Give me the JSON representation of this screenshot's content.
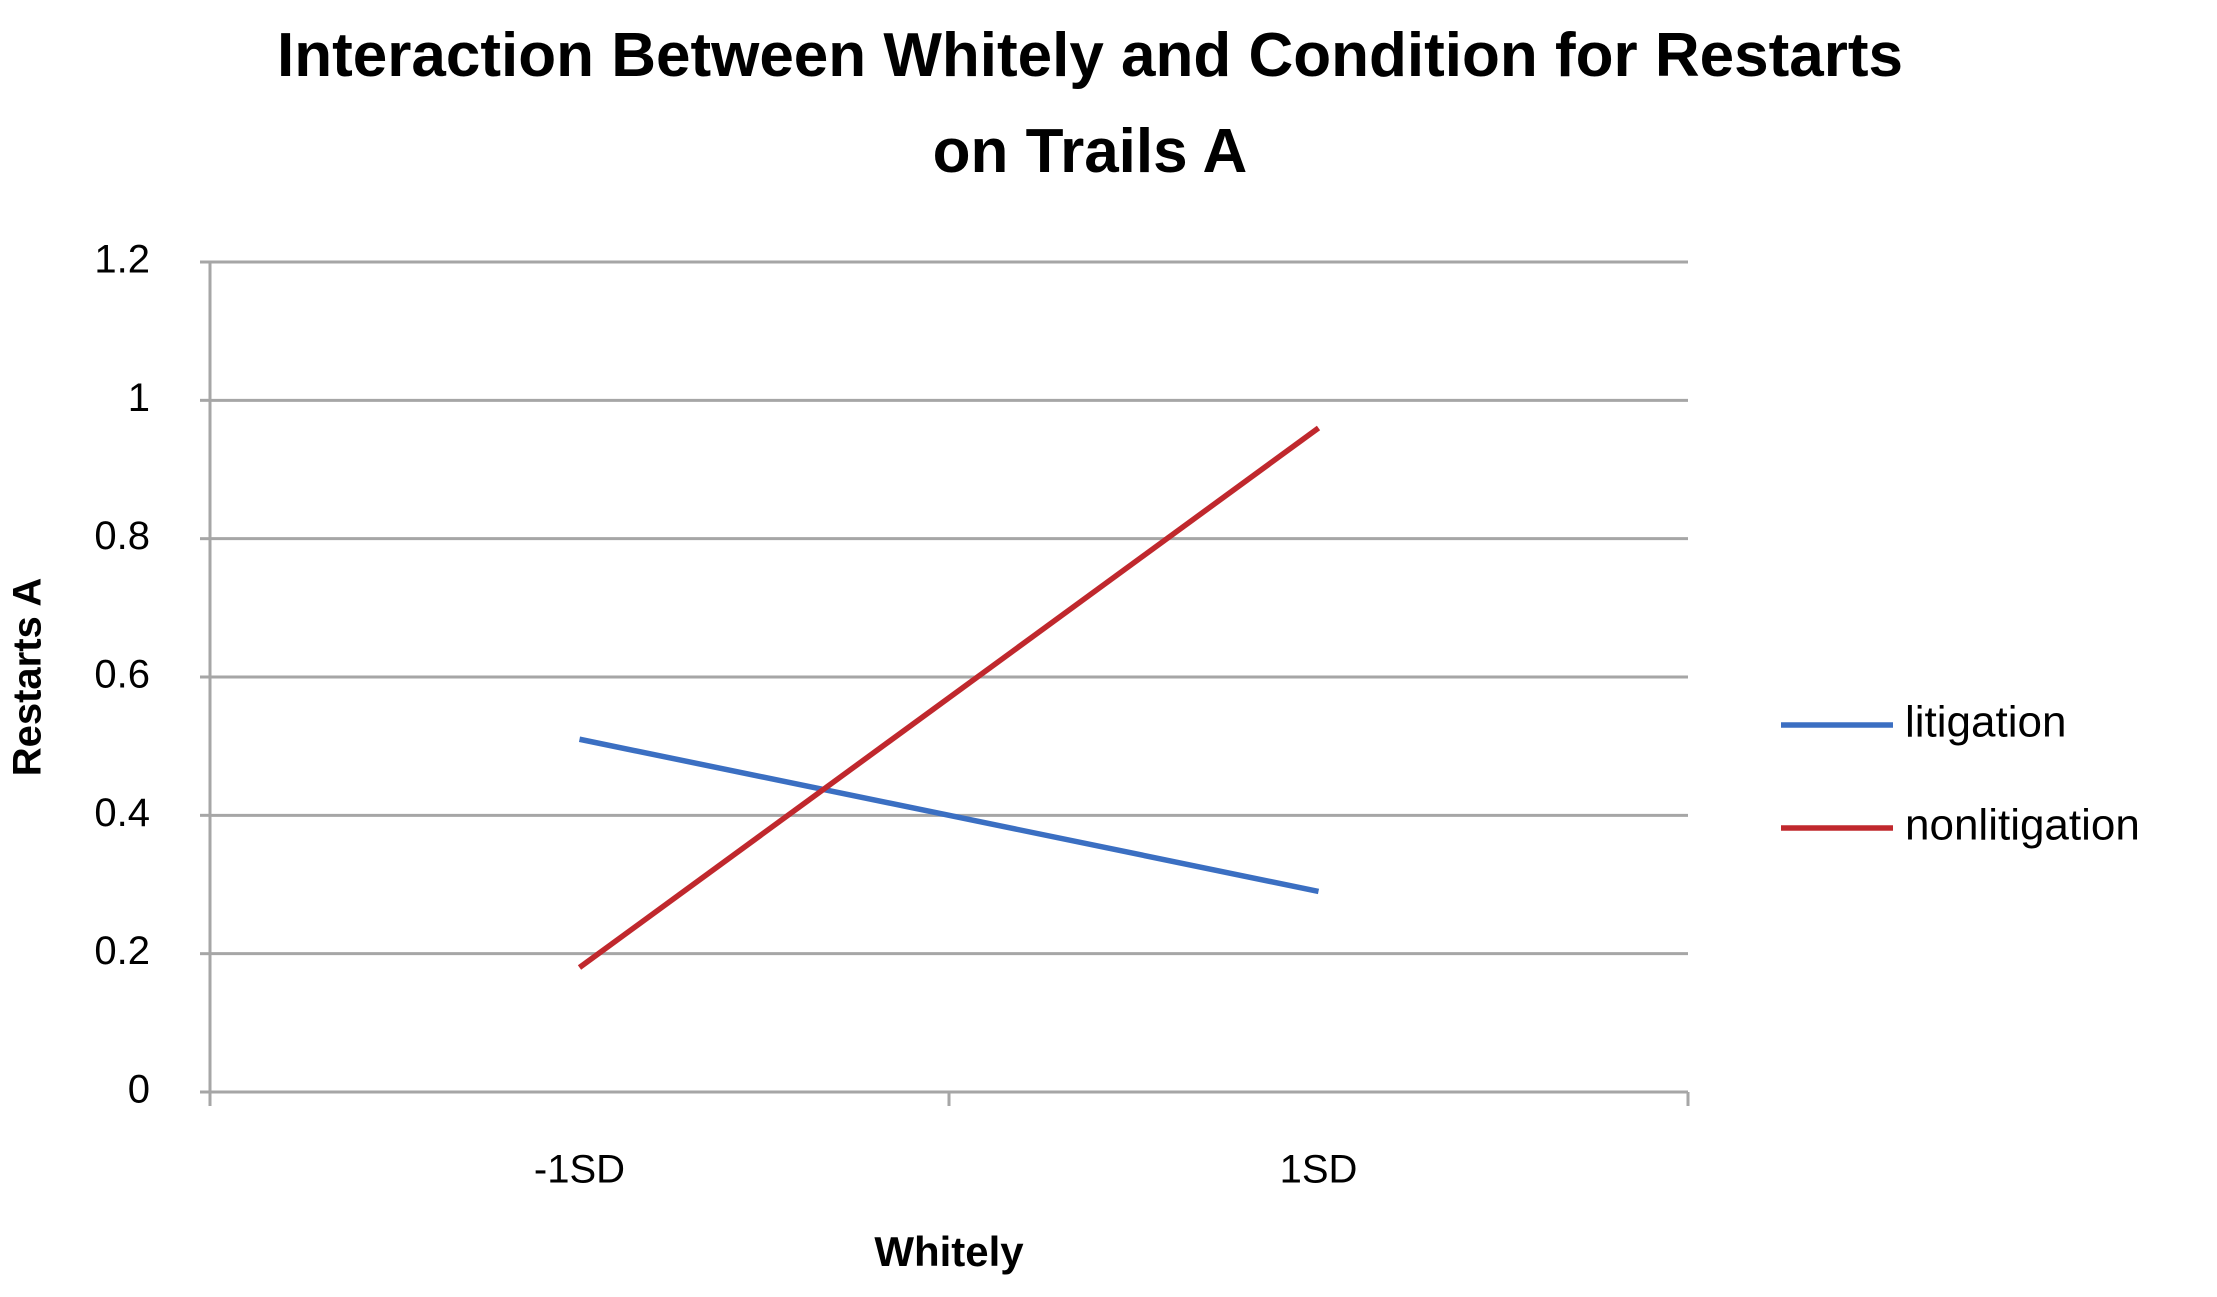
{
  "chart_data": {
    "type": "line",
    "title": "Interaction Between Whitely and Condition for Restarts on Trails A",
    "x_label": "Whitely",
    "y_label": "Restarts A",
    "categories": [
      "-1SD",
      "1SD"
    ],
    "series": [
      {
        "name": "litigation",
        "color": "#3b6fc2",
        "values": [
          0.51,
          0.29
        ]
      },
      {
        "name": "nonlitigation",
        "color": "#c0282d",
        "values": [
          0.18,
          0.96
        ]
      }
    ],
    "ylim": [
      0,
      1.2
    ],
    "yticks": [
      0,
      0.2,
      0.4,
      0.6,
      0.8,
      1,
      1.2
    ],
    "grid": true,
    "legend": "right"
  }
}
